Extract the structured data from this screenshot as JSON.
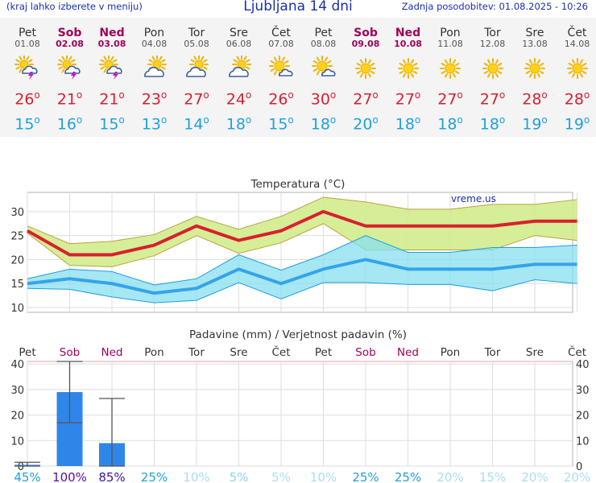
{
  "header": {
    "left_note": "(kraj lahko izberete v meniju)",
    "title": "Ljubljana 14 dni",
    "updated": "Zadnja posodobitev: 01.08.2025 - 10:26"
  },
  "colors": {
    "weekend": "#a0005a",
    "max_temp": "#d8202f",
    "min_temp": "#1ea0e0",
    "max_band": "#d2ec8c",
    "min_band": "#88dff0",
    "precip_bar": "#2f86e8"
  },
  "days": [
    {
      "name": "Pet",
      "date": "01.08",
      "weekend": false,
      "icon": "sun-cloud-storm-icon",
      "tmax": "26",
      "tmin": "15"
    },
    {
      "name": "Sob",
      "date": "02.08",
      "weekend": true,
      "icon": "sun-cloud-storm-icon",
      "tmax": "21",
      "tmin": "16"
    },
    {
      "name": "Ned",
      "date": "03.08",
      "weekend": true,
      "icon": "sun-cloud-storm-icon",
      "tmax": "21",
      "tmin": "15"
    },
    {
      "name": "Pon",
      "date": "04.08",
      "weekend": false,
      "icon": "sun-cloud-icon",
      "tmax": "23",
      "tmin": "13"
    },
    {
      "name": "Tor",
      "date": "05.08",
      "weekend": false,
      "icon": "sun-cloud-icon",
      "tmax": "27",
      "tmin": "14"
    },
    {
      "name": "Sre",
      "date": "06.08",
      "weekend": false,
      "icon": "sun-cloud-icon",
      "tmax": "24",
      "tmin": "18"
    },
    {
      "name": "Čet",
      "date": "07.08",
      "weekend": false,
      "icon": "sun-small-cloud-icon",
      "tmax": "26",
      "tmin": "15"
    },
    {
      "name": "Pet",
      "date": "08.08",
      "weekend": false,
      "icon": "sun-small-cloud-icon",
      "tmax": "30",
      "tmin": "18"
    },
    {
      "name": "Sob",
      "date": "09.08",
      "weekend": true,
      "icon": "sun-icon",
      "tmax": "27",
      "tmin": "20"
    },
    {
      "name": "Ned",
      "date": "10.08",
      "weekend": true,
      "icon": "sun-icon",
      "tmax": "27",
      "tmin": "18"
    },
    {
      "name": "Pon",
      "date": "11.08",
      "weekend": false,
      "icon": "sun-icon",
      "tmax": "27",
      "tmin": "18"
    },
    {
      "name": "Tor",
      "date": "12.08",
      "weekend": false,
      "icon": "sun-icon",
      "tmax": "27",
      "tmin": "18"
    },
    {
      "name": "Sre",
      "date": "13.08",
      "weekend": false,
      "icon": "sun-icon",
      "tmax": "28",
      "tmin": "19"
    },
    {
      "name": "Čet",
      "date": "14.08",
      "weekend": false,
      "icon": "sun-icon",
      "tmax": "28",
      "tmin": "19"
    }
  ],
  "chart_data": [
    {
      "type": "line",
      "title": "Temperatura (°C)",
      "watermark": "vreme.us",
      "ylim": [
        9,
        34
      ],
      "yticks": [
        10,
        15,
        20,
        25,
        30
      ],
      "categories": [
        "01.08",
        "02.08",
        "03.08",
        "04.08",
        "05.08",
        "06.08",
        "07.08",
        "08.08",
        "09.08",
        "10.08",
        "11.08",
        "12.08",
        "13.08",
        "14.08"
      ],
      "series": [
        {
          "role": "max",
          "values": [
            26,
            21,
            21,
            23,
            27,
            24,
            26,
            30,
            27,
            27,
            27,
            27,
            28,
            28
          ],
          "upper": [
            27,
            23.3,
            23.8,
            25.2,
            29,
            26.3,
            29,
            33,
            32,
            30.5,
            30.5,
            31.5,
            31.5,
            32.5
          ],
          "lower": [
            25.5,
            18.8,
            18.5,
            20.8,
            25,
            21.3,
            23.5,
            27.5,
            22,
            22,
            22,
            22,
            25,
            24
          ]
        },
        {
          "role": "min",
          "values": [
            15,
            16,
            15,
            13,
            14,
            18,
            15,
            18,
            20,
            18,
            18,
            18,
            19,
            19
          ],
          "upper": [
            16,
            18,
            17.5,
            14.7,
            16,
            21,
            17.8,
            21,
            25,
            21.5,
            21.5,
            22.5,
            22.5,
            23
          ],
          "lower": [
            14,
            13.8,
            12.2,
            11,
            11.5,
            15.2,
            11.8,
            15.2,
            15.2,
            14.8,
            14.8,
            13.5,
            15.8,
            15
          ]
        }
      ],
      "grid": true
    },
    {
      "type": "bar",
      "title": "Padavine (mm) / Verjetnost padavin (%)",
      "ylim": [
        0,
        41
      ],
      "yticks": [
        0,
        10,
        20,
        30,
        40
      ],
      "categories": [
        "Pet",
        "Sob",
        "Ned",
        "Pon",
        "Tor",
        "Sre",
        "Čet",
        "Pet",
        "Sob",
        "Ned",
        "Pon",
        "Tor",
        "Sre",
        "Čet"
      ],
      "weekend": [
        false,
        true,
        true,
        false,
        false,
        false,
        false,
        false,
        true,
        true,
        false,
        false,
        false,
        false
      ],
      "values": [
        0.5,
        29,
        9,
        0,
        0,
        0,
        0,
        0,
        0,
        0,
        0,
        0,
        0,
        0
      ],
      "error_low": [
        0,
        17,
        0,
        0,
        0,
        0,
        0,
        0,
        0,
        0,
        0,
        0,
        0,
        0
      ],
      "error_high": [
        1.5,
        41,
        26.5,
        0,
        0,
        0,
        0,
        0,
        0,
        0,
        0,
        0,
        0,
        0
      ],
      "probability": [
        "45%",
        "100%",
        "85%",
        "25%",
        "10%",
        "5%",
        "5%",
        "10%",
        "25%",
        "25%",
        "20%",
        "15%",
        "20%",
        "20%"
      ],
      "probability_colors": [
        "#1ea0e0",
        "#5a0aa8",
        "#3a14b0",
        "#1ea0e0",
        "#a8dcf8",
        "#8fd2f6",
        "#a8dcf8",
        "#a8dcf8",
        "#1ea0e0",
        "#1ea0e0",
        "#a8dcf8",
        "#a8dcf8",
        "#a8dcf8",
        "#a8dcf8"
      ],
      "grid": true
    }
  ]
}
